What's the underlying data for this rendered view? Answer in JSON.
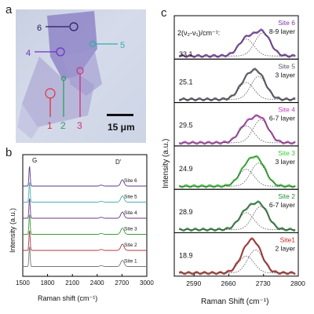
{
  "panel_a": {
    "letter": "a",
    "scale_bar": "15 μm",
    "sites": [
      {
        "label": "1",
        "color": "#e0303a"
      },
      {
        "label": "2",
        "color": "#2aa05a"
      },
      {
        "label": "3",
        "color": "#d0307a"
      },
      {
        "label": "4",
        "color": "#7030c0"
      },
      {
        "label": "5",
        "color": "#30b0a8"
      },
      {
        "label": "6",
        "color": "#202060"
      }
    ]
  },
  "panel_b": {
    "letter": "b",
    "peak_labels": [
      "G",
      "D'"
    ],
    "y_axis_label": "Intensity (a.u.)",
    "x_axis_label": "Raman shift (cm⁻¹)",
    "x_ticks": [
      "1500",
      "1800",
      "2100",
      "2400",
      "2700",
      "3000"
    ],
    "sites": [
      "Site 6",
      "Site 5",
      "Site 4",
      "Site 3",
      "Site 2",
      "Site 1"
    ],
    "series_colors": [
      "#5a3a8a",
      "#4ab0b0",
      "#6a3a8a",
      "#3a9a3a",
      "#aa3a4a",
      "#777777"
    ]
  },
  "panel_c": {
    "letter": "c",
    "y_axis_label": "Intensity (a.u.)",
    "x_axis_label": "Raman Shift (cm⁻¹)",
    "x_ticks": [
      "2590",
      "2660",
      "2730",
      "2800"
    ],
    "fwhm_header": "2(ν₂-ν₁)/cm⁻¹:",
    "subpanels": [
      {
        "site": "Site 6",
        "layers": "8-9 layer",
        "value": "33.1",
        "color": "#7a3aaa"
      },
      {
        "site": "Site 5",
        "layers": "3 layer",
        "value": "25.1",
        "color": "#555566"
      },
      {
        "site": "Site 4",
        "layers": "6-7 layer",
        "value": "29.5",
        "color": "#c040c0"
      },
      {
        "site": "Site 3",
        "layers": "3 layer",
        "value": "24.9",
        "color": "#30d030"
      },
      {
        "site": "Site 2",
        "layers": "6-7 layer",
        "value": "28.9",
        "color": "#2a8a3a"
      },
      {
        "site": "Site1",
        "layers": "2 layer",
        "value": "18.9",
        "color": "#c02828"
      }
    ]
  }
}
